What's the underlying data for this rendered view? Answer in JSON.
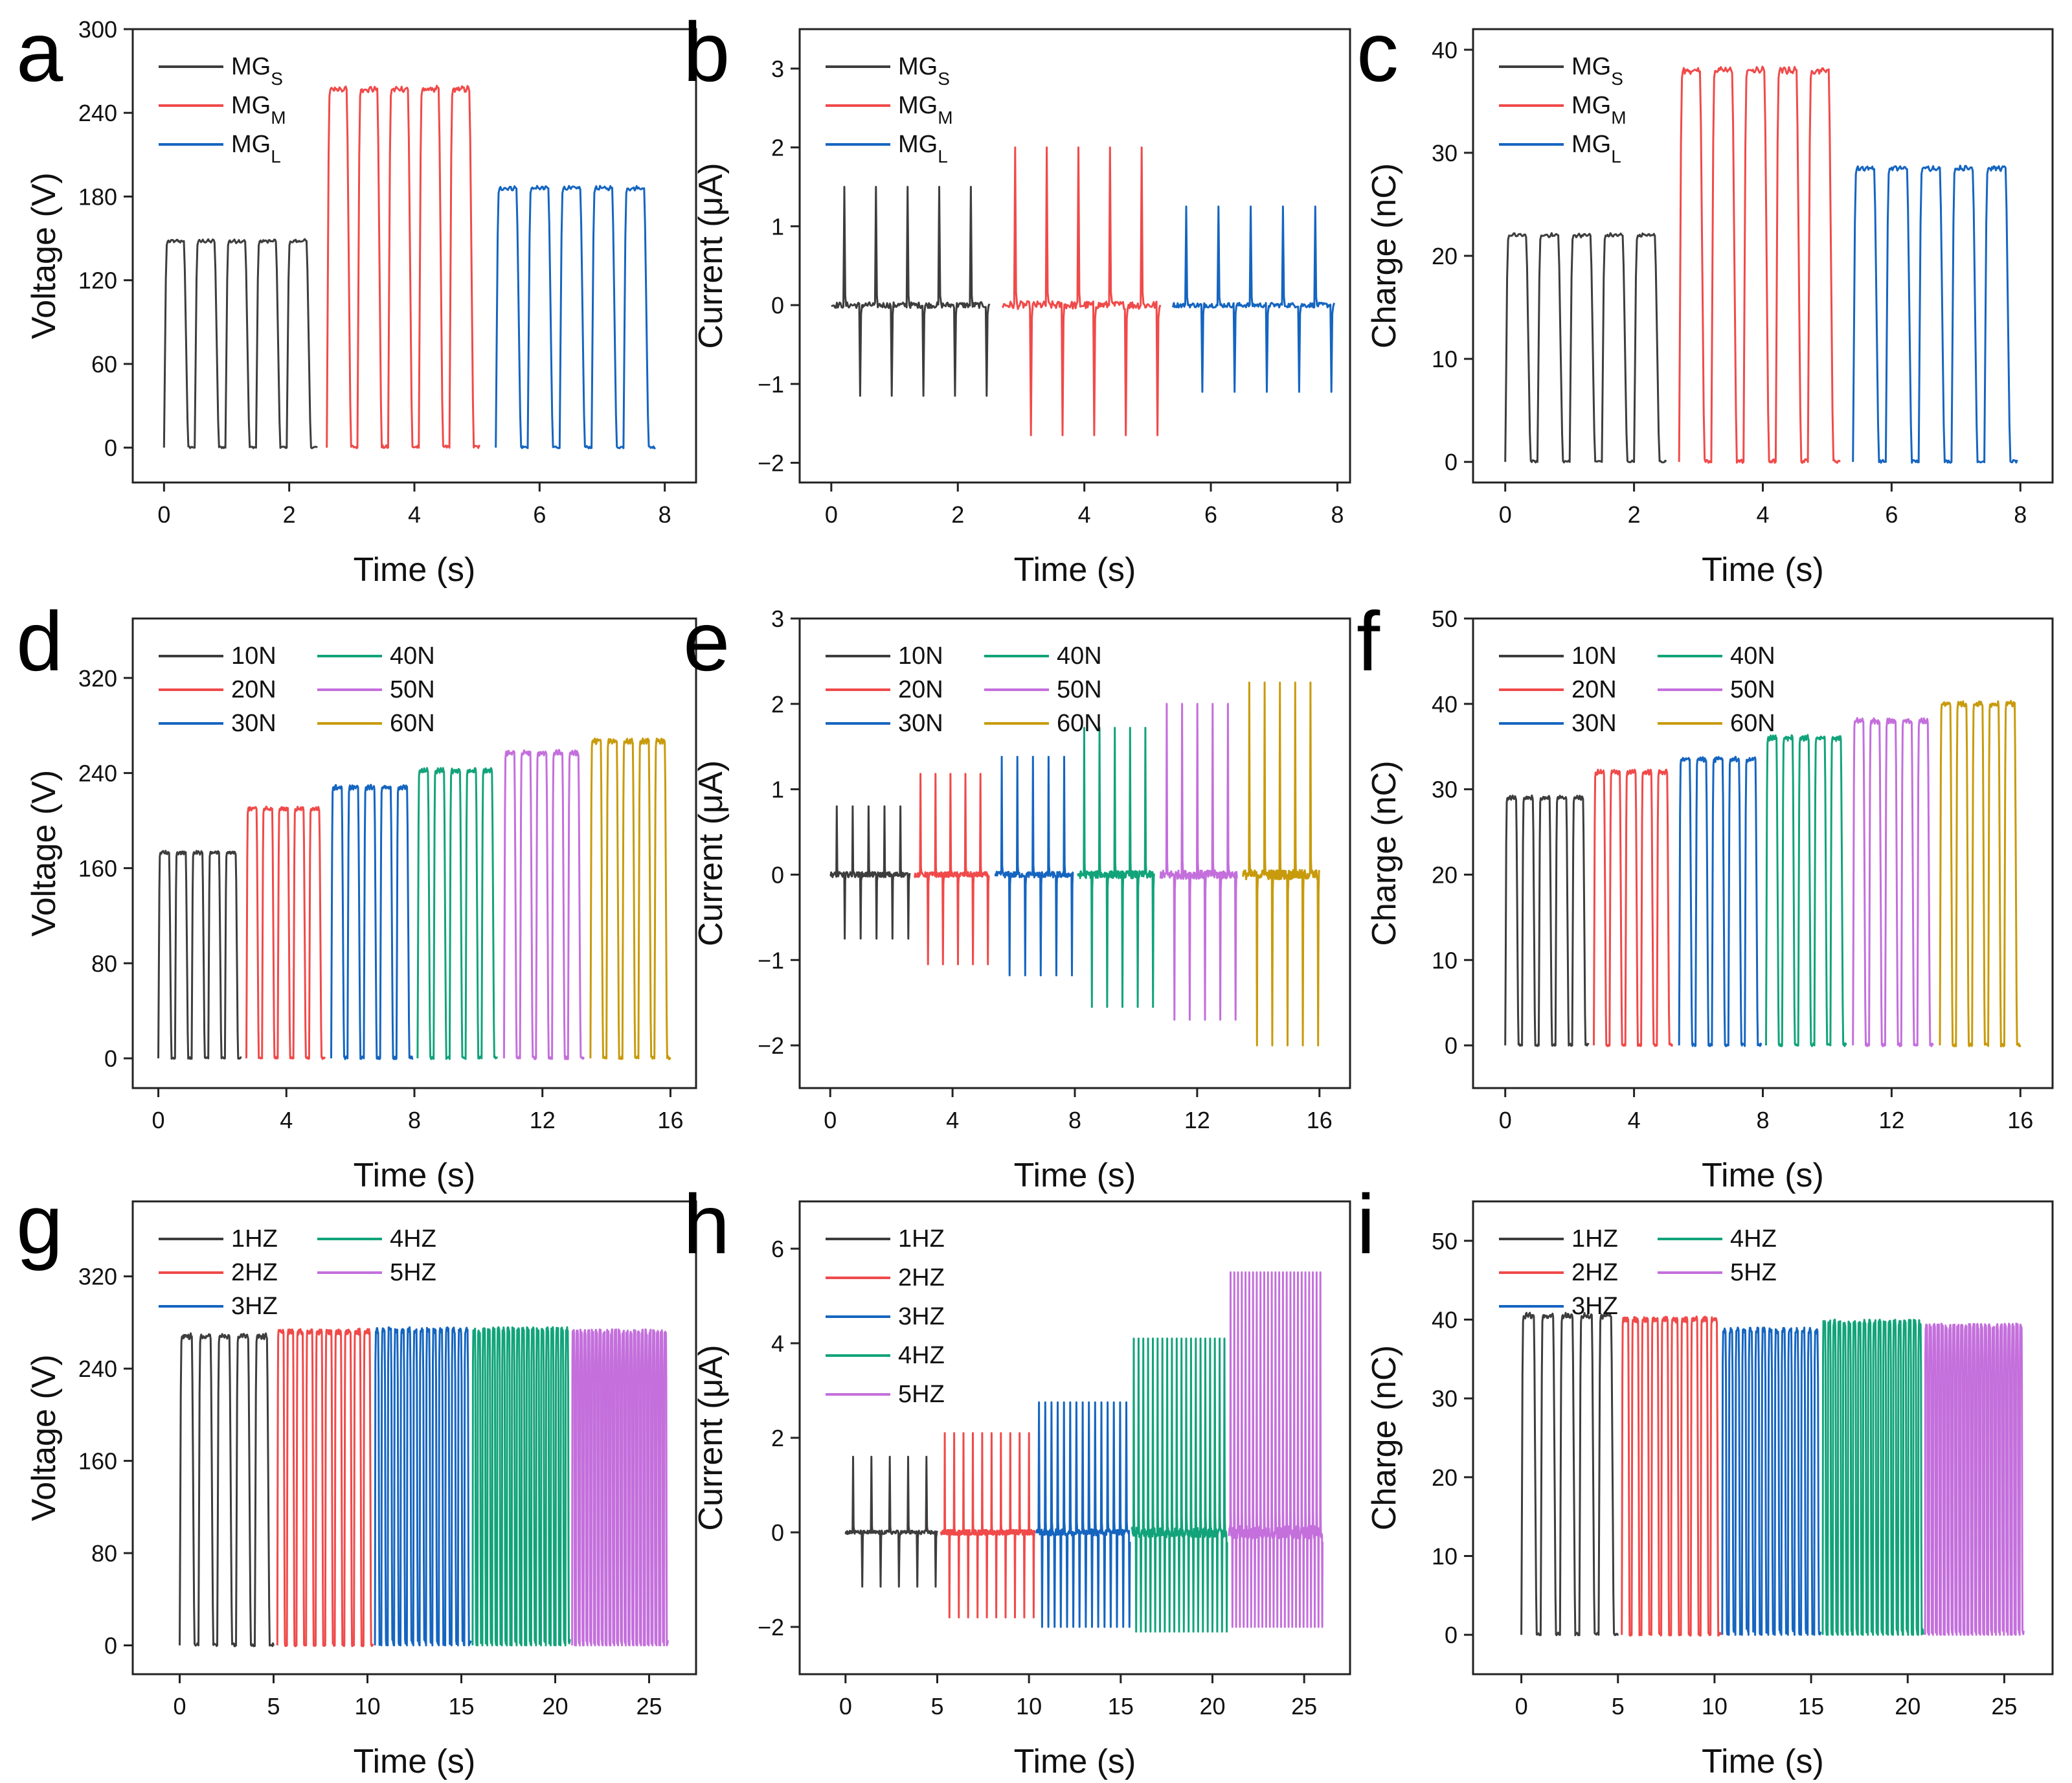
{
  "figure": {
    "colors": {
      "black": "#3d3d3d",
      "red": "#f04a4a",
      "blue": "#1565c0",
      "green": "#12a37a",
      "purple": "#c46fdc",
      "gold": "#c89b0c"
    }
  },
  "chart_data": [
    {
      "id": "a",
      "panel_label": "a",
      "type": "line",
      "xlabel": "Time (s)",
      "ylabel": "Voltage (V)",
      "xlim": [
        -0.5,
        8.5
      ],
      "ylim": [
        -25,
        300
      ],
      "xticks": [
        0,
        2,
        4,
        6,
        8
      ],
      "yticks": [
        0,
        60,
        120,
        180,
        240,
        300
      ],
      "legend_cols": 1,
      "series": [
        {
          "name": "MG",
          "sub": "S",
          "color": "black",
          "kind": "voltage",
          "t0": 0,
          "t1": 2.45,
          "n": 5,
          "peak": 148
        },
        {
          "name": "MG",
          "sub": "M",
          "color": "red",
          "kind": "voltage",
          "t0": 2.6,
          "t1": 5.05,
          "n": 5,
          "peak": 257
        },
        {
          "name": "MG",
          "sub": "L",
          "color": "blue",
          "kind": "voltage",
          "t0": 5.3,
          "t1": 7.85,
          "n": 5,
          "peak": 186
        }
      ]
    },
    {
      "id": "b",
      "panel_label": "b",
      "type": "line",
      "xlabel": "Time (s)",
      "ylabel": "Current (μA)",
      "xlim": [
        -0.5,
        8.2
      ],
      "ylim": [
        -2.25,
        3.5
      ],
      "xticks": [
        0,
        2,
        4,
        6,
        8
      ],
      "yticks": [
        -2,
        -1,
        0,
        1,
        2,
        3
      ],
      "ytick_labels": [
        "−2",
        "−1",
        "0",
        "1",
        "2",
        "3"
      ],
      "legend_cols": 1,
      "series": [
        {
          "name": "MG",
          "sub": "S",
          "color": "black",
          "kind": "current",
          "t0": 0,
          "t1": 2.5,
          "n": 5,
          "peak": 1.5,
          "trough": -1.15
        },
        {
          "name": "MG",
          "sub": "M",
          "color": "red",
          "kind": "current",
          "t0": 2.7,
          "t1": 5.2,
          "n": 5,
          "peak": 2.0,
          "trough": -1.65
        },
        {
          "name": "MG",
          "sub": "L",
          "color": "blue",
          "kind": "current",
          "t0": 5.4,
          "t1": 7.95,
          "n": 5,
          "peak": 1.25,
          "trough": -1.1
        }
      ]
    },
    {
      "id": "c",
      "panel_label": "c",
      "type": "line",
      "xlabel": "Time (s)",
      "ylabel": "Charge (nC)",
      "xlim": [
        -0.5,
        8.5
      ],
      "ylim": [
        -2,
        42
      ],
      "xticks": [
        0,
        2,
        4,
        6,
        8
      ],
      "yticks": [
        0,
        10,
        20,
        30,
        40
      ],
      "legend_cols": 1,
      "series": [
        {
          "name": "MG",
          "sub": "S",
          "color": "black",
          "kind": "voltage",
          "t0": 0,
          "t1": 2.5,
          "n": 5,
          "peak": 22
        },
        {
          "name": "MG",
          "sub": "M",
          "color": "red",
          "kind": "voltage",
          "t0": 2.7,
          "t1": 5.2,
          "n": 5,
          "peak": 38
        },
        {
          "name": "MG",
          "sub": "L",
          "color": "blue",
          "kind": "voltage",
          "t0": 5.4,
          "t1": 7.95,
          "n": 5,
          "peak": 28.5
        }
      ]
    },
    {
      "id": "d",
      "panel_label": "d",
      "type": "line",
      "xlabel": "Time (s)",
      "ylabel": "Voltage (V)",
      "xlim": [
        -0.8,
        16.8
      ],
      "ylim": [
        -25,
        370
      ],
      "xticks": [
        0,
        4,
        8,
        12,
        16
      ],
      "yticks": [
        0,
        80,
        160,
        240,
        320
      ],
      "legend_cols": 2,
      "series": [
        {
          "name": "10N",
          "color": "black",
          "kind": "voltage",
          "t0": 0,
          "t1": 2.6,
          "n": 5,
          "peak": 173
        },
        {
          "name": "20N",
          "color": "red",
          "kind": "voltage",
          "t0": 2.75,
          "t1": 5.2,
          "n": 5,
          "peak": 210
        },
        {
          "name": "30N",
          "color": "blue",
          "kind": "voltage",
          "t0": 5.4,
          "t1": 7.95,
          "n": 5,
          "peak": 228
        },
        {
          "name": "40N",
          "color": "green",
          "kind": "voltage",
          "t0": 8.1,
          "t1": 10.6,
          "n": 5,
          "peak": 242
        },
        {
          "name": "50N",
          "color": "purple",
          "kind": "voltage",
          "t0": 10.8,
          "t1": 13.3,
          "n": 5,
          "peak": 257
        },
        {
          "name": "60N",
          "color": "gold",
          "kind": "voltage",
          "t0": 13.5,
          "t1": 16.0,
          "n": 5,
          "peak": 267
        }
      ]
    },
    {
      "id": "e",
      "panel_label": "e",
      "type": "line",
      "xlabel": "Time (s)",
      "ylabel": "Current (μA)",
      "xlim": [
        -1,
        17
      ],
      "ylim": [
        -2.5,
        3
      ],
      "xticks": [
        0,
        4,
        8,
        12,
        16
      ],
      "yticks": [
        -2,
        -1,
        0,
        1,
        2,
        3
      ],
      "ytick_labels": [
        "−2",
        "−1",
        "0",
        "1",
        "2",
        "3"
      ],
      "legend_cols": 2,
      "series": [
        {
          "name": "10N",
          "color": "black",
          "kind": "current",
          "t0": 0,
          "t1": 2.6,
          "n": 5,
          "peak": 0.8,
          "trough": -0.75
        },
        {
          "name": "20N",
          "color": "red",
          "kind": "current",
          "t0": 2.75,
          "t1": 5.2,
          "n": 5,
          "peak": 1.18,
          "trough": -1.05
        },
        {
          "name": "30N",
          "color": "blue",
          "kind": "current",
          "t0": 5.4,
          "t1": 7.95,
          "n": 5,
          "peak": 1.38,
          "trough": -1.18
        },
        {
          "name": "40N",
          "color": "green",
          "kind": "current",
          "t0": 8.1,
          "t1": 10.6,
          "n": 5,
          "peak": 1.72,
          "trough": -1.55
        },
        {
          "name": "50N",
          "color": "purple",
          "kind": "current",
          "t0": 10.8,
          "t1": 13.3,
          "n": 5,
          "peak": 2.0,
          "trough": -1.7
        },
        {
          "name": "60N",
          "color": "gold",
          "kind": "current",
          "t0": 13.5,
          "t1": 16.0,
          "n": 5,
          "peak": 2.25,
          "trough": -2.0
        }
      ]
    },
    {
      "id": "f",
      "panel_label": "f",
      "type": "line",
      "xlabel": "Time (s)",
      "ylabel": "Charge (nC)",
      "xlim": [
        -1,
        17
      ],
      "ylim": [
        -5,
        50
      ],
      "xticks": [
        0,
        4,
        8,
        12,
        16
      ],
      "yticks": [
        0,
        10,
        20,
        30,
        40,
        50
      ],
      "legend_cols": 2,
      "series": [
        {
          "name": "10N",
          "color": "black",
          "kind": "voltage",
          "t0": 0,
          "t1": 2.6,
          "n": 5,
          "peak": 29
        },
        {
          "name": "20N",
          "color": "red",
          "kind": "voltage",
          "t0": 2.75,
          "t1": 5.2,
          "n": 5,
          "peak": 32
        },
        {
          "name": "30N",
          "color": "blue",
          "kind": "voltage",
          "t0": 5.4,
          "t1": 7.95,
          "n": 5,
          "peak": 33.5
        },
        {
          "name": "40N",
          "color": "green",
          "kind": "voltage",
          "t0": 8.1,
          "t1": 10.6,
          "n": 5,
          "peak": 36
        },
        {
          "name": "50N",
          "color": "purple",
          "kind": "voltage",
          "t0": 10.8,
          "t1": 13.3,
          "n": 5,
          "peak": 38
        },
        {
          "name": "60N",
          "color": "gold",
          "kind": "voltage",
          "t0": 13.5,
          "t1": 16.0,
          "n": 5,
          "peak": 40
        }
      ]
    },
    {
      "id": "g",
      "panel_label": "g",
      "type": "line",
      "xlabel": "Time (s)",
      "ylabel": "Voltage (V)",
      "xlim": [
        -2.5,
        27.5
      ],
      "ylim": [
        -25,
        385
      ],
      "xticks": [
        0,
        5,
        10,
        15,
        20,
        25
      ],
      "yticks": [
        0,
        80,
        160,
        240,
        320
      ],
      "legend_cols": 2,
      "series": [
        {
          "name": "1HZ",
          "color": "black",
          "kind": "voltage",
          "t0": 0,
          "t1": 5,
          "n": 5,
          "peak": 268
        },
        {
          "name": "2HZ",
          "color": "red",
          "kind": "voltage",
          "t0": 5.2,
          "t1": 10.3,
          "n": 10,
          "peak": 272
        },
        {
          "name": "3HZ",
          "color": "blue",
          "kind": "voltage",
          "t0": 10.4,
          "t1": 15.5,
          "n": 15,
          "peak": 276
        },
        {
          "name": "4HZ",
          "color": "green",
          "kind": "voltage",
          "t0": 15.6,
          "t1": 20.8,
          "n": 20,
          "peak": 276
        },
        {
          "name": "5HZ",
          "color": "purple",
          "kind": "voltage",
          "t0": 20.9,
          "t1": 26.0,
          "n": 25,
          "peak": 274
        }
      ]
    },
    {
      "id": "h",
      "panel_label": "h",
      "type": "line",
      "xlabel": "Time (s)",
      "ylabel": "Current (μA)",
      "xlim": [
        -2.5,
        27.5
      ],
      "ylim": [
        -3,
        7
      ],
      "xticks": [
        0,
        5,
        10,
        15,
        20,
        25
      ],
      "yticks": [
        -2,
        0,
        2,
        4,
        6
      ],
      "ytick_labels": [
        "−2",
        "0",
        "2",
        "4",
        "6"
      ],
      "legend_cols": 1,
      "series": [
        {
          "name": "1HZ",
          "color": "black",
          "kind": "current",
          "t0": 0,
          "t1": 5,
          "n": 5,
          "peak": 1.6,
          "trough": -1.15
        },
        {
          "name": "2HZ",
          "color": "red",
          "kind": "current",
          "t0": 5.2,
          "t1": 10.3,
          "n": 10,
          "peak": 2.1,
          "trough": -1.8
        },
        {
          "name": "3HZ",
          "color": "blue",
          "kind": "current",
          "t0": 10.4,
          "t1": 15.5,
          "n": 15,
          "peak": 2.75,
          "trough": -2.0
        },
        {
          "name": "4HZ",
          "color": "green",
          "kind": "current",
          "t0": 15.6,
          "t1": 20.8,
          "n": 20,
          "peak": 4.1,
          "trough": -2.1
        },
        {
          "name": "5HZ",
          "color": "purple",
          "kind": "current",
          "t0": 20.9,
          "t1": 26.0,
          "n": 25,
          "peak": 5.5,
          "trough": -2.0
        }
      ]
    },
    {
      "id": "i",
      "panel_label": "i",
      "type": "line",
      "xlabel": "Time (s)",
      "ylabel": "Charge (nC)",
      "xlim": [
        -2.5,
        27.5
      ],
      "ylim": [
        -5,
        55
      ],
      "xticks": [
        0,
        5,
        10,
        15,
        20,
        25
      ],
      "yticks": [
        0,
        10,
        20,
        30,
        40,
        50
      ],
      "legend_cols": 2,
      "series": [
        {
          "name": "1HZ",
          "color": "black",
          "kind": "voltage",
          "t0": 0,
          "t1": 5,
          "n": 5,
          "peak": 40.5
        },
        {
          "name": "2HZ",
          "color": "red",
          "kind": "voltage",
          "t0": 5.2,
          "t1": 10.3,
          "n": 10,
          "peak": 40
        },
        {
          "name": "3HZ",
          "color": "blue",
          "kind": "voltage",
          "t0": 10.4,
          "t1": 15.5,
          "n": 15,
          "peak": 39
        },
        {
          "name": "4HZ",
          "color": "green",
          "kind": "voltage",
          "t0": 15.6,
          "t1": 20.8,
          "n": 20,
          "peak": 40
        },
        {
          "name": "5HZ",
          "color": "purple",
          "kind": "voltage",
          "t0": 20.9,
          "t1": 26.0,
          "n": 25,
          "peak": 39.5
        }
      ]
    }
  ]
}
